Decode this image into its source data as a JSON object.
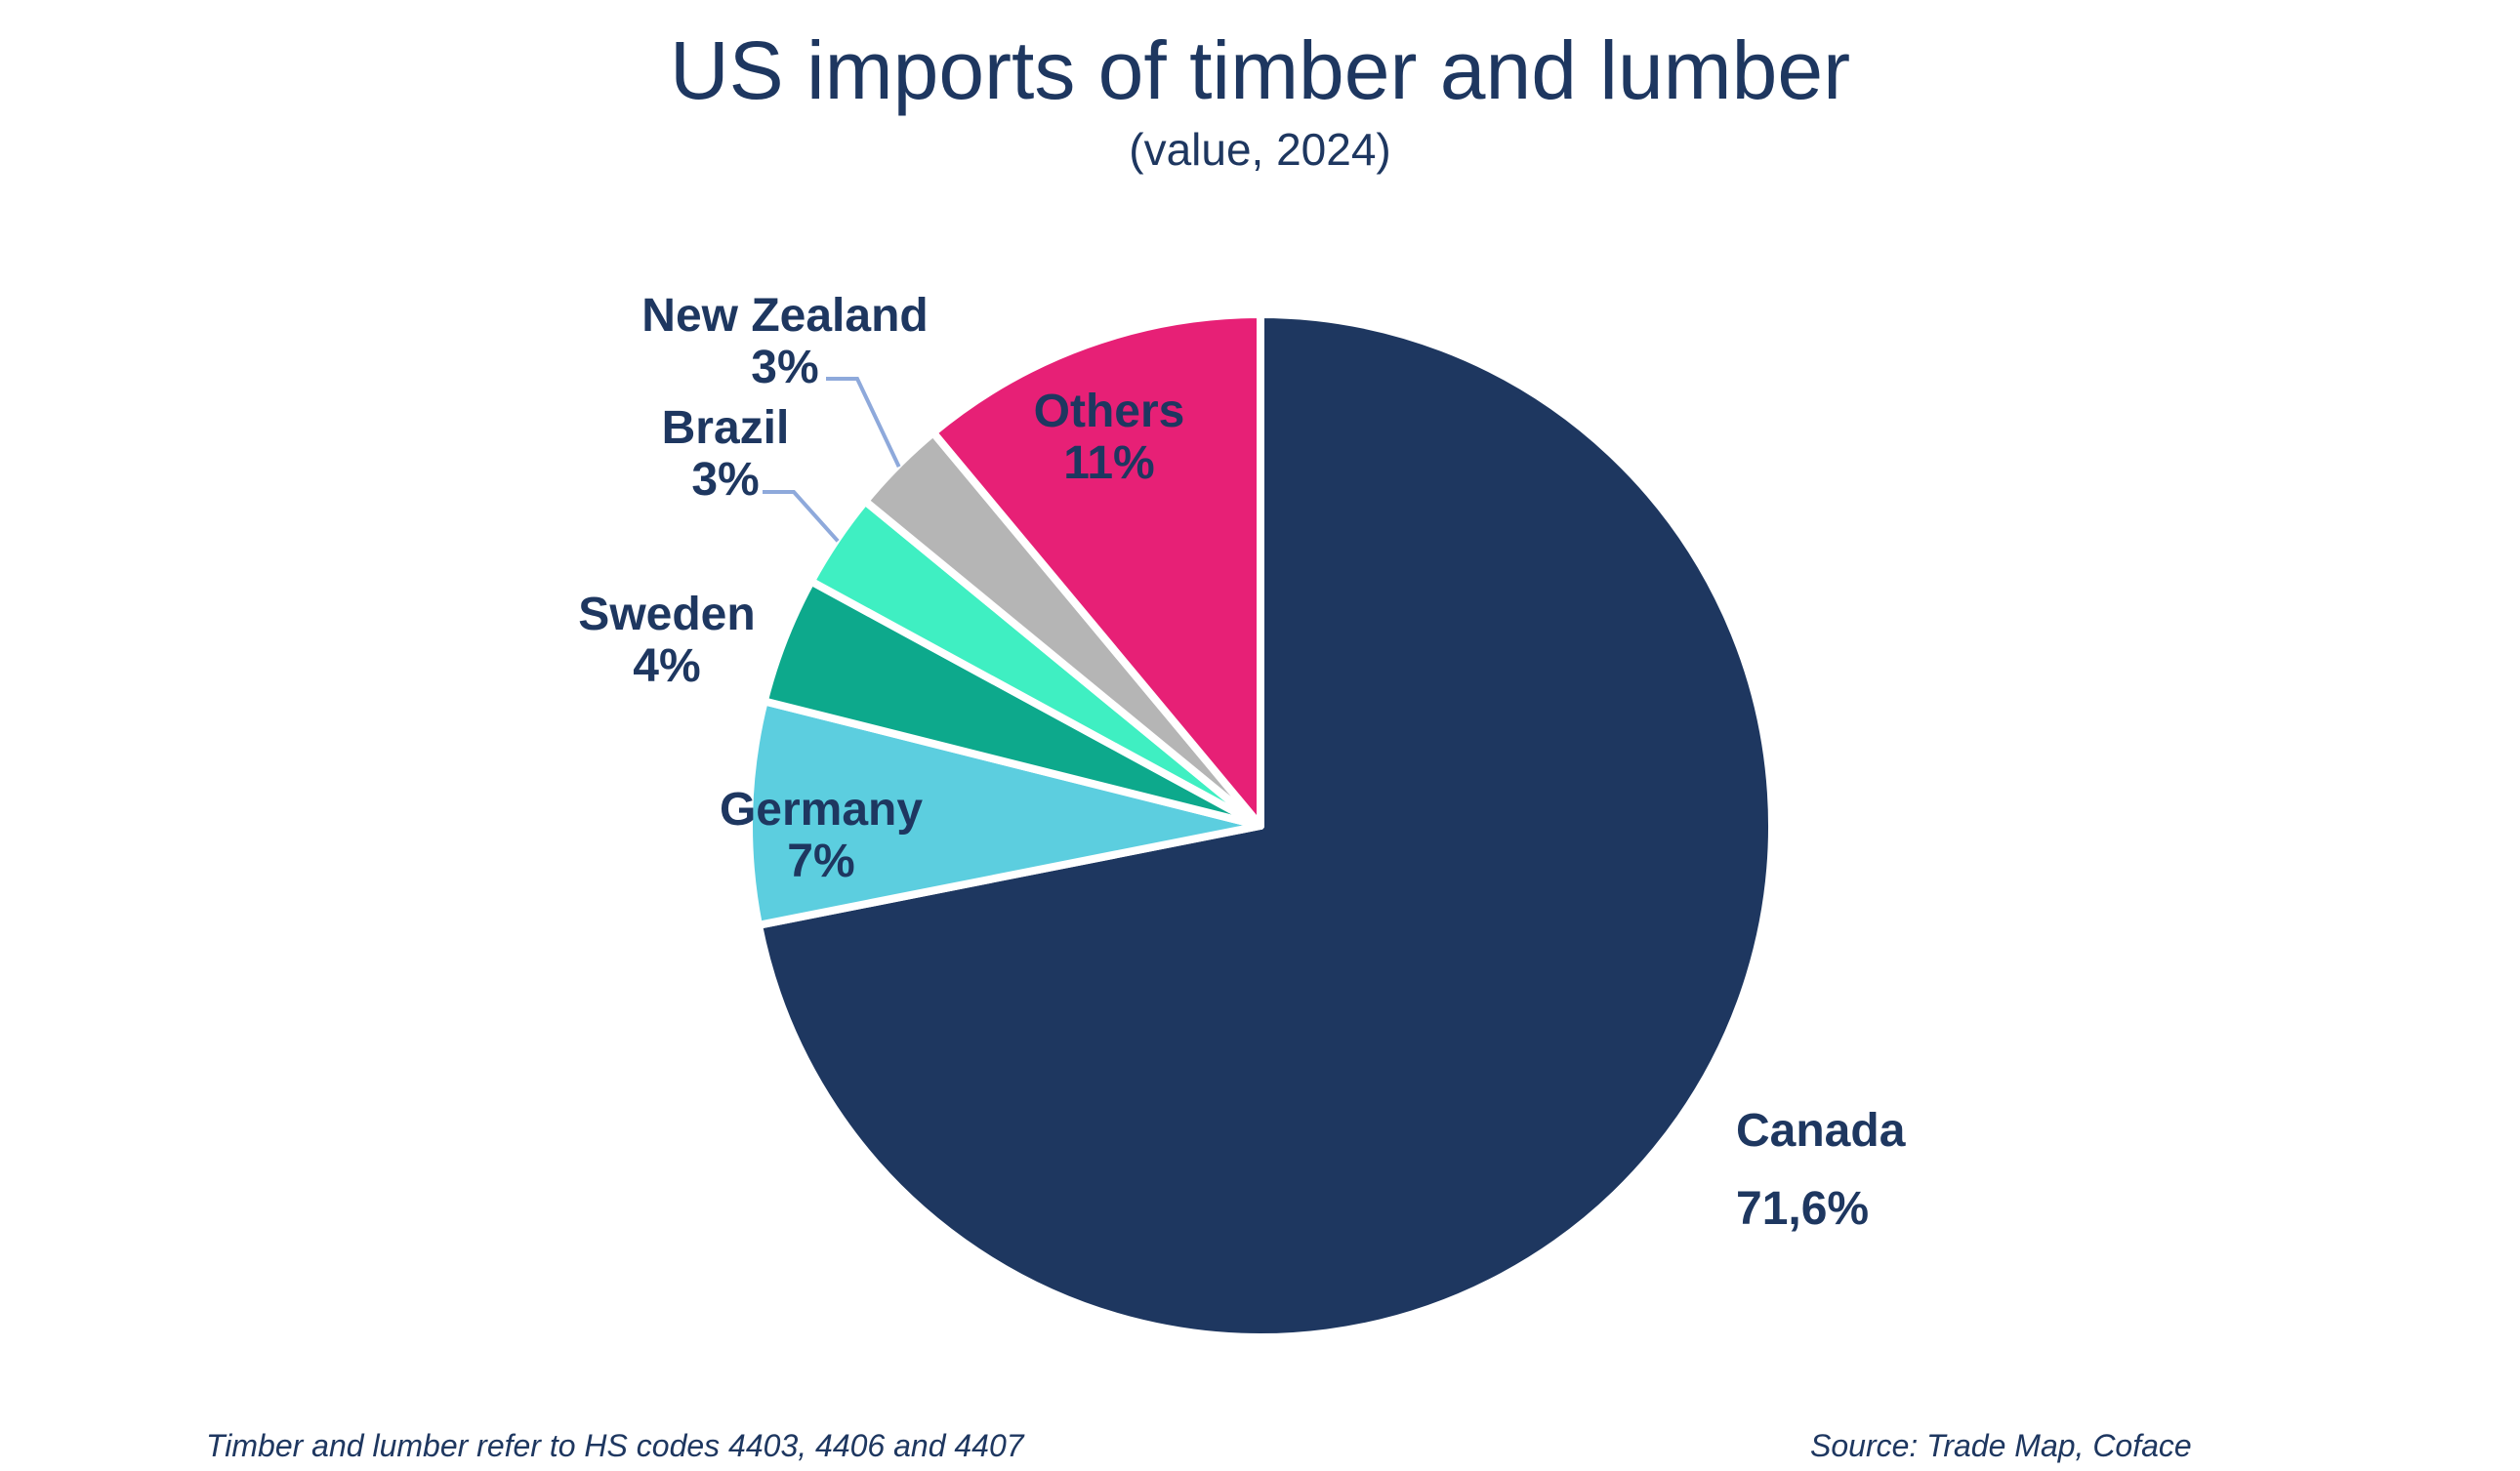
{
  "header": {
    "title": "US imports of timber and lumber",
    "subtitle": "(value, 2024)"
  },
  "footer": {
    "footnote": "Timber and lumber refer to HS codes 4403, 4406 and 4407",
    "source": "Source: Trade Map, Coface"
  },
  "colors": {
    "text_navy": "#1E3760",
    "slice_border": "#FFFFFF",
    "leader_line": "#8EA9DB",
    "background": "#FFFFFF"
  },
  "chart_data": {
    "type": "pie",
    "title": "US imports of timber and lumber",
    "subtitle": "(value, 2024)",
    "start_angle_deg": 0,
    "direction": "clockwise",
    "legend": "none",
    "slices": [
      {
        "label": "Canada",
        "value": 71.6,
        "display_value": "71,6%",
        "color": "#1E3760",
        "label_placement": "outside-right"
      },
      {
        "label": "Germany",
        "value": 7,
        "display_value": "7%",
        "color": "#5CCEDF",
        "label_placement": "inside"
      },
      {
        "label": "Sweden",
        "value": 4,
        "display_value": "4%",
        "color": "#0DA98C",
        "label_placement": "outside-left"
      },
      {
        "label": "Brazil",
        "value": 3,
        "display_value": "3%",
        "color": "#3FEFC2",
        "label_placement": "outside-left-leader"
      },
      {
        "label": "New Zealand",
        "value": 3,
        "display_value": "3%",
        "color": "#B5B5B5",
        "label_placement": "outside-left-leader"
      },
      {
        "label": "Others",
        "value": 11,
        "display_value": "11%",
        "color": "#E72076",
        "label_placement": "inside"
      }
    ]
  }
}
